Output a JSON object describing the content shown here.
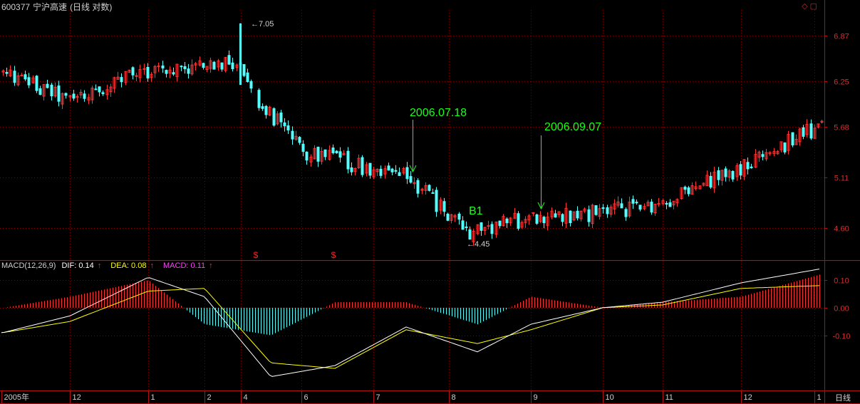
{
  "window": {
    "stock_code": "600377",
    "stock_name": "宁沪高速",
    "period_label": "(日线 对数)",
    "corner_button_label": "日线",
    "corner_icons": [
      "diamond-icon",
      "restore-icon"
    ]
  },
  "colors": {
    "up": "#ff3232",
    "down": "#54ffff",
    "grid": "#800000",
    "axis": "#b01010",
    "dif": "#ffffff",
    "dea": "#ffff00",
    "macd_label": "#ff40ff",
    "annotation": "#19ff19",
    "text": "#c0c0c0"
  },
  "chart_data": [
    {
      "type": "candlestick",
      "title": "600377 宁沪高速(日线 对数)",
      "y_scale": "log",
      "ylim": [
        4.3,
        7.25
      ],
      "y_ticks": [
        "6.87",
        "6.25",
        "5.68",
        "5.11",
        "4.60"
      ],
      "x_ticks": [
        "2005年",
        "12",
        "1",
        "2",
        "4",
        "6",
        "7",
        "8",
        "9",
        "10",
        "11",
        "12",
        "1"
      ],
      "grid": true,
      "approx_close_path": [
        {
          "period": "2005-11",
          "close": 6.35
        },
        {
          "period": "2005-12",
          "close": 6.0
        },
        {
          "period": "2006-01",
          "close": 6.4
        },
        {
          "period": "2006-02",
          "close": 6.45
        },
        {
          "period": "2006-03",
          "close": 6.5
        },
        {
          "period": "2006-04 (before gap)",
          "close": 6.12
        },
        {
          "period": "2006-05",
          "close": 5.4
        },
        {
          "period": "2006-06",
          "close": 5.2
        },
        {
          "period": "2006-07",
          "close": 5.1
        },
        {
          "period": "2006-08",
          "close": 4.55
        },
        {
          "period": "2006-09",
          "close": 4.7
        },
        {
          "period": "2006-10",
          "close": 4.75
        },
        {
          "period": "2006-11",
          "close": 4.85
        },
        {
          "period": "2006-12",
          "close": 5.2
        },
        {
          "period": "2007-01",
          "close": 5.7
        }
      ],
      "high_marker": {
        "label": "7.05",
        "value": 7.05
      },
      "low_marker": {
        "label": "4.45",
        "value": 4.45
      },
      "annotations": [
        {
          "text": "2006.07.18"
        },
        {
          "text": "2006.09.07"
        },
        {
          "text": "B1"
        }
      ],
      "event_markers": [
        {
          "text": "$"
        },
        {
          "text": "$"
        }
      ]
    },
    {
      "type": "macd",
      "indicator": "MACD(12,26,9)",
      "ylim": [
        -0.3,
        0.17
      ],
      "y_ticks": [
        "0.10",
        "0.00",
        "-0.10"
      ],
      "series": [
        {
          "name": "DIF",
          "latest": "0.14"
        },
        {
          "name": "DEA",
          "latest": "0.08"
        },
        {
          "name": "MACD",
          "latest": "0.11"
        }
      ],
      "approx_values": [
        {
          "period": "2005-11",
          "dif": -0.09,
          "dea": -0.09
        },
        {
          "period": "2005-12",
          "dif": -0.03,
          "dea": -0.05
        },
        {
          "period": "2006-01",
          "dif": 0.11,
          "dea": 0.06
        },
        {
          "period": "2006-02",
          "dif": 0.04,
          "dea": 0.07
        },
        {
          "period": "2006-04",
          "dif": -0.25,
          "dea": -0.2
        },
        {
          "period": "2006-06",
          "dif": -0.21,
          "dea": -0.22
        },
        {
          "period": "2006-07",
          "dif": -0.07,
          "dea": -0.08
        },
        {
          "period": "2006-08",
          "dif": -0.16,
          "dea": -0.13
        },
        {
          "period": "2006-09",
          "dif": -0.06,
          "dea": -0.08
        },
        {
          "period": "2006-10",
          "dif": 0.0,
          "dea": 0.0
        },
        {
          "period": "2006-11",
          "dif": 0.02,
          "dea": 0.01
        },
        {
          "period": "2006-12",
          "dif": 0.09,
          "dea": 0.07
        },
        {
          "period": "2007-01",
          "dif": 0.14,
          "dea": 0.08
        }
      ]
    }
  ],
  "legend": {
    "name": "MACD(12,26,9)",
    "dif_label": "DIF: 0.14",
    "dea_label": "DEA: 0.08",
    "macd_label": "MACD: 0.11",
    "arrow": "↑"
  }
}
